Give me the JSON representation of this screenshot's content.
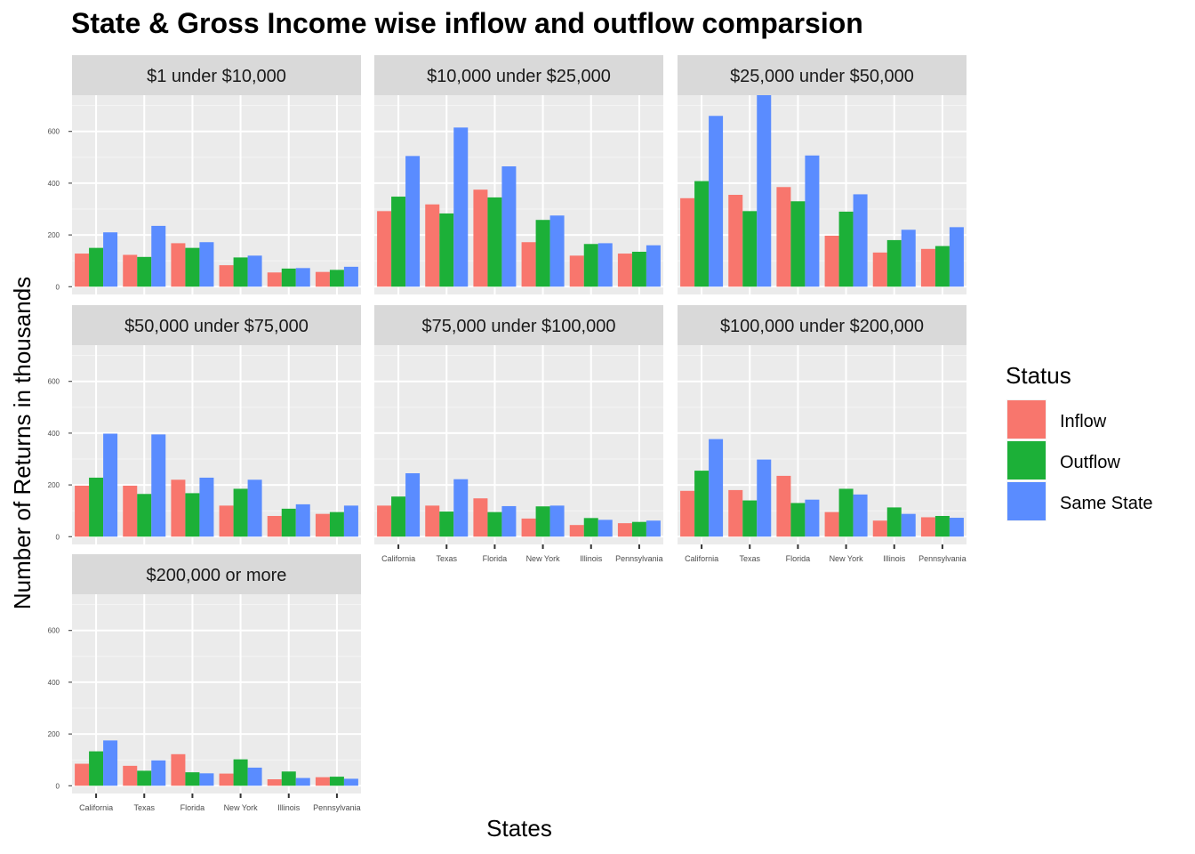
{
  "chart_data": {
    "type": "bar",
    "title": "State & Gross Income wise inflow and outflow comparsion",
    "xlabel": "States",
    "ylabel": "Number of Returns in thousands",
    "ylim": [
      0,
      740
    ],
    "yticks": [
      0,
      200,
      400,
      600
    ],
    "grid": true,
    "legend_position": "right",
    "legend_title": "Status",
    "categories": [
      "California",
      "Texas",
      "Florida",
      "New York",
      "Illinois",
      "Pennsylvania"
    ],
    "series_names": [
      "Inflow",
      "Outflow",
      "Same State"
    ],
    "colors": {
      "Inflow": "#F8766D",
      "Outflow": "#1CB038",
      "Same State": "#5A8CFF"
    },
    "panels": [
      {
        "title": "$1 under $10,000",
        "series": [
          {
            "name": "Inflow",
            "values": [
              128,
              123,
              168,
              83,
              55,
              57
            ]
          },
          {
            "name": "Outflow",
            "values": [
              150,
              115,
              150,
              113,
              70,
              65
            ]
          },
          {
            "name": "Same State",
            "values": [
              210,
              235,
              172,
              120,
              72,
              77
            ]
          }
        ]
      },
      {
        "title": "$10,000 under $25,000",
        "series": [
          {
            "name": "Inflow",
            "values": [
              292,
              318,
              375,
              172,
              120,
              128
            ]
          },
          {
            "name": "Outflow",
            "values": [
              348,
              283,
              345,
              258,
              165,
              135
            ]
          },
          {
            "name": "Same State",
            "values": [
              505,
              615,
              465,
              275,
              168,
              160
            ]
          }
        ]
      },
      {
        "title": "$25,000 under $50,000",
        "series": [
          {
            "name": "Inflow",
            "values": [
              342,
              355,
              385,
              197,
              132,
              146
            ]
          },
          {
            "name": "Outflow",
            "values": [
              408,
              292,
              330,
              290,
              180,
              157
            ]
          },
          {
            "name": "Same State",
            "values": [
              660,
              740,
              507,
              357,
              220,
              230
            ]
          }
        ]
      },
      {
        "title": "$50,000 under $75,000",
        "series": [
          {
            "name": "Inflow",
            "values": [
              197,
              197,
              220,
              120,
              80,
              88
            ]
          },
          {
            "name": "Outflow",
            "values": [
              228,
              165,
              168,
              185,
              108,
              95
            ]
          },
          {
            "name": "Same State",
            "values": [
              398,
              395,
              228,
              220,
              125,
              120
            ]
          }
        ]
      },
      {
        "title": "$75,000 under $100,000",
        "series": [
          {
            "name": "Inflow",
            "values": [
              120,
              120,
              148,
              70,
              45,
              52
            ]
          },
          {
            "name": "Outflow",
            "values": [
              155,
              97,
              95,
              117,
              72,
              57
            ]
          },
          {
            "name": "Same State",
            "values": [
              245,
              222,
              118,
              120,
              65,
              62
            ]
          }
        ]
      },
      {
        "title": "$100,000 under $200,000",
        "series": [
          {
            "name": "Inflow",
            "values": [
              177,
              180,
              235,
              95,
              62,
              75
            ]
          },
          {
            "name": "Outflow",
            "values": [
              255,
              140,
              130,
              185,
              113,
              80
            ]
          },
          {
            "name": "Same State",
            "values": [
              377,
              298,
              143,
              163,
              88,
              73
            ]
          }
        ]
      },
      {
        "title": "$200,000 or more",
        "series": [
          {
            "name": "Inflow",
            "values": [
              85,
              77,
              122,
              47,
              25,
              33
            ]
          },
          {
            "name": "Outflow",
            "values": [
              133,
              58,
              52,
              102,
              55,
              35
            ]
          },
          {
            "name": "Same State",
            "values": [
              175,
              98,
              48,
              70,
              30,
              27
            ]
          }
        ]
      }
    ]
  }
}
